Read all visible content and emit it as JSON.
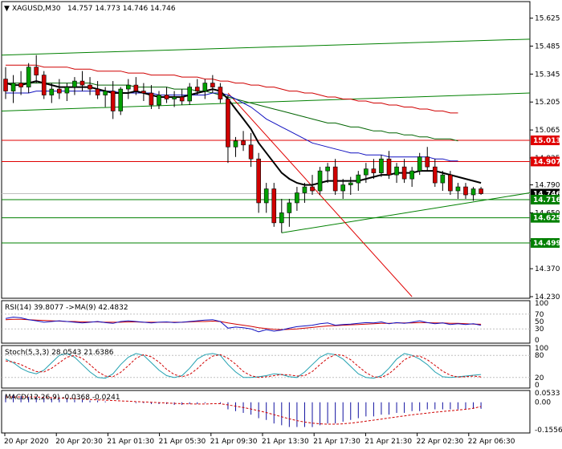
{
  "header": {
    "symbol": "XAGUSD,M30",
    "ohlc": "14.757 14.773 14.746 14.746"
  },
  "price_axis": {
    "ticks": [
      "15.625",
      "15.485",
      "15.345",
      "15.205",
      "15.065",
      "14.925",
      "14.790",
      "14.650",
      "14.510",
      "14.370",
      "14.230"
    ],
    "ylim": [
      14.23,
      15.7
    ]
  },
  "price_levels": [
    {
      "value": "15.013",
      "color": "#e00000",
      "style": "line"
    },
    {
      "value": "14.907",
      "color": "#e00000",
      "style": "line"
    },
    {
      "value": "14.746",
      "color": "#000000",
      "style": "current"
    },
    {
      "value": "14.716",
      "color": "#008000",
      "style": "line"
    },
    {
      "value": "14.625",
      "color": "#008000",
      "style": "line"
    },
    {
      "value": "14.499",
      "color": "#008000",
      "style": "line"
    }
  ],
  "rsi": {
    "label": "RSI(14) 39.8077  ->MA(9) 42.4832",
    "ticks": [
      "100",
      "70",
      "50",
      "30",
      "0"
    ]
  },
  "stoch": {
    "label": "Stoch(5,3,3) 28.0543 21.6386",
    "ticks": [
      "100",
      "80",
      "20",
      "0"
    ]
  },
  "macd": {
    "label": "MACD(12,26,9) -0.0368 -0.0241",
    "ticks": [
      "0.0533",
      "0.00",
      "-0.1556"
    ]
  },
  "time_axis": {
    "labels": [
      "20 Apr 2020",
      "20 Apr 20:30",
      "21 Apr 01:30",
      "21 Apr 05:30",
      "21 Apr 09:30",
      "21 Apr 13:30",
      "21 Apr 17:30",
      "21 Apr 21:30",
      "22 Apr 02:30",
      "22 Apr 06:30"
    ]
  },
  "chart_data": {
    "type": "candlestick",
    "symbol": "XAGUSD",
    "timeframe": "M30",
    "candles": [
      [
        15.32,
        15.38,
        15.22,
        15.26
      ],
      [
        15.26,
        15.34,
        15.2,
        15.3
      ],
      [
        15.3,
        15.36,
        15.24,
        15.28
      ],
      [
        15.28,
        15.4,
        15.25,
        15.38
      ],
      [
        15.38,
        15.44,
        15.3,
        15.34
      ],
      [
        15.34,
        15.36,
        15.22,
        15.24
      ],
      [
        15.24,
        15.3,
        15.2,
        15.27
      ],
      [
        15.27,
        15.32,
        15.22,
        15.25
      ],
      [
        15.25,
        15.3,
        15.21,
        15.28
      ],
      [
        15.28,
        15.33,
        15.24,
        15.31
      ],
      [
        15.31,
        15.36,
        15.26,
        15.29
      ],
      [
        15.29,
        15.33,
        15.24,
        15.27
      ],
      [
        15.27,
        15.31,
        15.22,
        15.24
      ],
      [
        15.24,
        15.28,
        15.18,
        15.26
      ],
      [
        15.26,
        15.31,
        15.12,
        15.16
      ],
      [
        15.16,
        15.28,
        15.14,
        15.27
      ],
      [
        15.27,
        15.32,
        15.22,
        15.29
      ],
      [
        15.29,
        15.33,
        15.24,
        15.26
      ],
      [
        15.26,
        15.3,
        15.21,
        15.25
      ],
      [
        15.25,
        15.29,
        15.17,
        15.19
      ],
      [
        15.19,
        15.26,
        15.17,
        15.24
      ],
      [
        15.24,
        15.28,
        15.2,
        15.22
      ],
      [
        15.22,
        15.26,
        15.18,
        15.23
      ],
      [
        15.23,
        15.27,
        15.19,
        15.21
      ],
      [
        15.21,
        15.3,
        15.19,
        15.28
      ],
      [
        15.28,
        15.32,
        15.24,
        15.26
      ],
      [
        15.26,
        15.32,
        15.22,
        15.3
      ],
      [
        15.3,
        15.34,
        15.25,
        15.28
      ],
      [
        15.28,
        15.3,
        15.2,
        15.22
      ],
      [
        15.22,
        15.24,
        14.9,
        14.98
      ],
      [
        14.98,
        15.03,
        14.93,
        15.01
      ],
      [
        15.01,
        15.06,
        14.96,
        14.99
      ],
      [
        14.99,
        15.05,
        14.88,
        14.92
      ],
      [
        14.92,
        14.95,
        14.65,
        14.7
      ],
      [
        14.7,
        14.8,
        14.65,
        14.77
      ],
      [
        14.77,
        14.8,
        14.58,
        14.6
      ],
      [
        14.6,
        14.72,
        14.55,
        14.65
      ],
      [
        14.65,
        14.72,
        14.58,
        14.7
      ],
      [
        14.7,
        14.78,
        14.66,
        14.75
      ],
      [
        14.75,
        14.8,
        14.7,
        14.78
      ],
      [
        14.78,
        14.84,
        14.74,
        14.76
      ],
      [
        14.76,
        14.88,
        14.74,
        14.86
      ],
      [
        14.86,
        14.9,
        14.8,
        14.88
      ],
      [
        14.88,
        14.92,
        14.74,
        14.76
      ],
      [
        14.76,
        14.82,
        14.72,
        14.79
      ],
      [
        14.79,
        14.83,
        14.74,
        14.8
      ],
      [
        14.8,
        14.86,
        14.76,
        14.84
      ],
      [
        14.84,
        14.9,
        14.8,
        14.87
      ],
      [
        14.87,
        14.92,
        14.82,
        14.85
      ],
      [
        14.85,
        14.94,
        14.83,
        14.92
      ],
      [
        14.92,
        14.96,
        14.82,
        14.84
      ],
      [
        14.84,
        14.9,
        14.8,
        14.88
      ],
      [
        14.88,
        14.92,
        14.8,
        14.82
      ],
      [
        14.82,
        14.88,
        14.78,
        14.86
      ],
      [
        14.86,
        14.95,
        14.84,
        14.93
      ],
      [
        14.93,
        14.98,
        14.86,
        14.88
      ],
      [
        14.88,
        14.92,
        14.78,
        14.8
      ],
      [
        14.8,
        14.86,
        14.76,
        14.84
      ],
      [
        14.84,
        14.86,
        14.74,
        14.76
      ],
      [
        14.76,
        14.8,
        14.72,
        14.78
      ],
      [
        14.78,
        14.8,
        14.72,
        14.74
      ],
      [
        14.74,
        14.78,
        14.71,
        14.77
      ],
      [
        14.77,
        14.78,
        14.74,
        14.746
      ]
    ],
    "ma_fast": [
      15.3,
      15.29,
      15.29,
      15.3,
      15.31,
      15.3,
      15.29,
      15.28,
      15.28,
      15.28,
      15.28,
      15.28,
      15.27,
      15.26,
      15.25,
      15.25,
      15.25,
      15.26,
      15.25,
      15.24,
      15.23,
      15.23,
      15.23,
      15.23,
      15.24,
      15.25,
      15.26,
      15.27,
      15.26,
      15.22,
      15.17,
      15.12,
      15.07,
      15.0,
      14.95,
      14.9,
      14.85,
      14.82,
      14.8,
      14.79,
      14.79,
      14.8,
      14.81,
      14.81,
      14.81,
      14.81,
      14.81,
      14.82,
      14.83,
      14.84,
      14.84,
      14.85,
      14.85,
      14.85,
      14.86,
      14.86,
      14.86,
      14.85,
      14.84,
      14.83,
      14.82,
      14.81,
      14.8
    ],
    "ma_slow": [
      15.25,
      15.25,
      15.25,
      15.25,
      15.26,
      15.26,
      15.26,
      15.26,
      15.26,
      15.26,
      15.26,
      15.26,
      15.26,
      15.26,
      15.26,
      15.25,
      15.25,
      15.25,
      15.25,
      15.25,
      15.24,
      15.24,
      15.24,
      15.24,
      15.24,
      15.24,
      15.24,
      15.25,
      15.25,
      15.24,
      15.22,
      15.2,
      15.18,
      15.15,
      15.12,
      15.1,
      15.08,
      15.06,
      15.04,
      15.02,
      15.0,
      14.99,
      14.98,
      14.97,
      14.96,
      14.95,
      14.95,
      14.94,
      14.94,
      14.94,
      14.93,
      14.93,
      14.93,
      14.93,
      14.93,
      14.93,
      14.92,
      14.92,
      14.91,
      14.91
    ],
    "ma_200": [
      15.3,
      15.3,
      15.3,
      15.3,
      15.3,
      15.3,
      15.3,
      15.3,
      15.3,
      15.3,
      15.3,
      15.3,
      15.29,
      15.29,
      15.29,
      15.29,
      15.29,
      15.28,
      15.28,
      15.28,
      15.28,
      15.28,
      15.27,
      15.27,
      15.27,
      15.26,
      15.26,
      15.25,
      15.24,
      15.23,
      15.22,
      15.21,
      15.2,
      15.19,
      15.18,
      15.17,
      15.16,
      15.15,
      15.14,
      15.13,
      15.12,
      15.11,
      15.1,
      15.1,
      15.09,
      15.08,
      15.08,
      15.07,
      15.06,
      15.06,
      15.05,
      15.05,
      15.04,
      15.04,
      15.03,
      15.03,
      15.02,
      15.02,
      15.02,
      15.01
    ],
    "ma_red": [
      15.39,
      15.39,
      15.39,
      15.39,
      15.39,
      15.38,
      15.38,
      15.38,
      15.38,
      15.37,
      15.37,
      15.37,
      15.36,
      15.36,
      15.36,
      15.36,
      15.35,
      15.35,
      15.35,
      15.34,
      15.34,
      15.34,
      15.34,
      15.33,
      15.33,
      15.33,
      15.32,
      15.32,
      15.31,
      15.31,
      15.3,
      15.3,
      15.29,
      15.29,
      15.28,
      15.28,
      15.27,
      15.26,
      15.26,
      15.25,
      15.25,
      15.24,
      15.23,
      15.23,
      15.22,
      15.22,
      15.21,
      15.21,
      15.2,
      15.2,
      15.19,
      15.19,
      15.18,
      15.18,
      15.17,
      15.17,
      15.16,
      15.16,
      15.15,
      15.15
    ],
    "rsi": [
      58,
      62,
      60,
      55,
      52,
      48,
      50,
      52,
      50,
      48,
      46,
      48,
      50,
      47,
      45,
      50,
      52,
      50,
      48,
      46,
      48,
      49,
      47,
      48,
      50,
      52,
      54,
      55,
      50,
      32,
      35,
      33,
      30,
      22,
      28,
      24,
      27,
      32,
      36,
      38,
      40,
      44,
      46,
      40,
      42,
      43,
      45,
      47,
      46,
      49,
      44,
      47,
      45,
      48,
      52,
      47,
      44,
      46,
      42,
      44,
      42,
      44,
      39.8
    ],
    "rsi_ma": [
      55,
      56,
      56,
      55,
      54,
      53,
      52,
      51,
      50,
      50,
      49,
      49,
      49,
      48,
      48,
      48,
      49,
      49,
      48,
      48,
      48,
      48,
      48,
      48,
      49,
      50,
      50,
      51,
      50,
      46,
      43,
      40,
      37,
      33,
      31,
      29,
      28,
      29,
      30,
      32,
      34,
      36,
      38,
      39,
      40,
      41,
      42,
      43,
      44,
      45,
      45,
      46,
      46,
      46,
      47,
      47,
      46,
      46,
      45,
      45,
      44,
      43,
      42.5
    ],
    "stoch_k": [
      70,
      60,
      45,
      35,
      30,
      40,
      60,
      80,
      85,
      75,
      55,
      35,
      20,
      18,
      30,
      55,
      75,
      85,
      80,
      60,
      40,
      25,
      20,
      25,
      45,
      70,
      82,
      85,
      80,
      55,
      35,
      20,
      20,
      22,
      25,
      30,
      28,
      22,
      20,
      35,
      55,
      75,
      85,
      82,
      70,
      50,
      30,
      20,
      18,
      25,
      45,
      70,
      85,
      80,
      70,
      55,
      35,
      22,
      20,
      22,
      24,
      26,
      28
    ],
    "stoch_d": [
      65,
      62,
      55,
      45,
      36,
      35,
      45,
      60,
      75,
      80,
      72,
      55,
      36,
      24,
      22,
      34,
      52,
      72,
      82,
      76,
      62,
      42,
      28,
      22,
      28,
      44,
      64,
      78,
      82,
      72,
      56,
      36,
      25,
      20,
      22,
      25,
      28,
      27,
      24,
      25,
      36,
      55,
      72,
      82,
      80,
      68,
      50,
      33,
      22,
      20,
      30,
      48,
      68,
      78,
      78,
      68,
      53,
      37,
      26,
      21,
      22,
      24,
      21.6
    ],
    "macd_hist": [
      0.04,
      0.04,
      0.035,
      0.03,
      0.03,
      0.025,
      0.02,
      0.02,
      0.02,
      0.015,
      0.015,
      0.01,
      0.01,
      0.005,
      0.0,
      0.0,
      0.0,
      -0.005,
      -0.005,
      -0.01,
      -0.01,
      -0.01,
      -0.015,
      -0.015,
      -0.01,
      -0.01,
      -0.005,
      0.0,
      -0.01,
      -0.04,
      -0.05,
      -0.06,
      -0.07,
      -0.09,
      -0.1,
      -0.12,
      -0.13,
      -0.14,
      -0.14,
      -0.14,
      -0.14,
      -0.13,
      -0.12,
      -0.12,
      -0.11,
      -0.1,
      -0.09,
      -0.08,
      -0.08,
      -0.07,
      -0.07,
      -0.06,
      -0.06,
      -0.05,
      -0.05,
      -0.04,
      -0.04,
      -0.04,
      -0.04,
      -0.04,
      -0.04,
      -0.037,
      -0.037
    ],
    "macd_signal": [
      0.03,
      0.03,
      0.03,
      0.03,
      0.03,
      0.028,
      0.026,
      0.024,
      0.022,
      0.02,
      0.018,
      0.016,
      0.014,
      0.012,
      0.01,
      0.008,
      0.006,
      0.004,
      0.002,
      0.0,
      -0.002,
      -0.004,
      -0.006,
      -0.008,
      -0.009,
      -0.01,
      -0.01,
      -0.008,
      -0.008,
      -0.015,
      -0.022,
      -0.03,
      -0.038,
      -0.048,
      -0.058,
      -0.07,
      -0.082,
      -0.094,
      -0.104,
      -0.112,
      -0.118,
      -0.122,
      -0.124,
      -0.124,
      -0.122,
      -0.118,
      -0.113,
      -0.107,
      -0.101,
      -0.095,
      -0.089,
      -0.083,
      -0.077,
      -0.071,
      -0.066,
      -0.061,
      -0.056,
      -0.052,
      -0.048,
      -0.044,
      -0.04,
      -0.034,
      -0.024
    ]
  }
}
